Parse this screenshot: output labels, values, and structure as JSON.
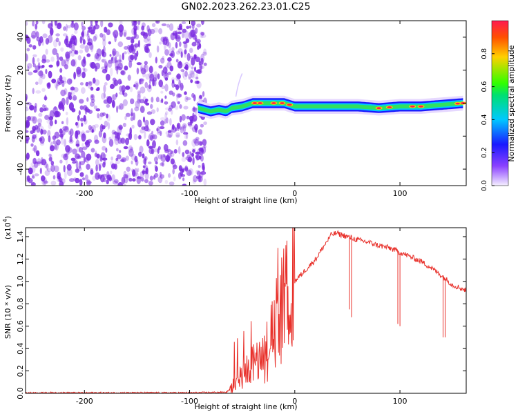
{
  "title": "GN02.2023.262.23.01.C25",
  "colors": {
    "snr_line": "#e8302a",
    "scatter": "#7a2ae0",
    "colorbar_stops": [
      "#f5f0ff",
      "#8a40ff",
      "#1a1aff",
      "#00c8ff",
      "#00e070",
      "#30ff00",
      "#ffd000",
      "#ff5000",
      "#ff1a50"
    ]
  },
  "spectrogram": {
    "xlabel": "Height of straight line (km)",
    "ylabel": "Frequency (Hz)",
    "xlim": [
      -256,
      163
    ],
    "ylim": [
      -50,
      50
    ],
    "x_ticks": [
      "-200",
      "-100",
      "0",
      "100"
    ],
    "y_ticks": [
      "-40",
      "-20",
      "0",
      "20",
      "40"
    ]
  },
  "colorbar": {
    "label": "Normalized spectral amplitude",
    "ticks": [
      "0.0",
      "0.2",
      "0.4",
      "0.6",
      "0.8"
    ],
    "range": [
      0,
      1
    ]
  },
  "snr": {
    "xlabel": "Height of straight line (km)",
    "ylabel": "SNR (10 * v/v)",
    "multiplier": "(x10",
    "multiplier_exp": "4",
    "multiplier_close": ")",
    "xlim": [
      -256,
      163
    ],
    "ylim": [
      0,
      1.48
    ],
    "x_ticks": [
      "-200",
      "-100",
      "0",
      "100"
    ],
    "y_ticks": [
      "0.0",
      "0.2",
      "0.4",
      "0.6",
      "0.8",
      "1.0",
      "1.2",
      "1.4"
    ]
  },
  "chart_data": [
    {
      "type": "heatmap",
      "title": "GN02.2023.262.23.01.C25",
      "xlabel": "Height of straight line (km)",
      "ylabel": "Frequency (Hz)",
      "xlim": [
        -256,
        163
      ],
      "ylim": [
        -50,
        50
      ],
      "noise_region_x": [
        -256,
        -85
      ],
      "ridge": {
        "x": [
          -92,
          -80,
          -72,
          -65,
          -60,
          -50,
          -40,
          -30,
          -20,
          -10,
          0,
          20,
          40,
          60,
          80,
          100,
          120,
          140,
          160
        ],
        "freq": [
          -3,
          -5,
          -4,
          -5,
          -3,
          -2,
          0,
          0,
          0,
          0,
          -2,
          -2,
          -2,
          -2,
          -3,
          -2,
          -2,
          -1,
          0
        ],
        "amplitude": [
          0.3,
          0.35,
          0.4,
          0.45,
          0.5,
          0.6,
          0.9,
          0.95,
          0.9,
          0.9,
          0.5,
          0.55,
          0.6,
          0.7,
          0.9,
          0.7,
          0.85,
          0.7,
          0.85
        ]
      }
    },
    {
      "type": "line",
      "xlabel": "Height of straight line (km)",
      "ylabel": "SNR (10 * v/v)",
      "xlim": [
        -256,
        163
      ],
      "ylim": [
        0,
        1.48
      ],
      "units_multiplier": 10000,
      "x": [
        -256,
        -200,
        -100,
        -65,
        -60,
        -50,
        -40,
        -30,
        -25,
        -20,
        -15,
        -10,
        0,
        10,
        20,
        30,
        35,
        40,
        50,
        60,
        70,
        80,
        90,
        100,
        110,
        120,
        130,
        140,
        150,
        163
      ],
      "y": [
        0.005,
        0.005,
        0.005,
        0.01,
        0.05,
        0.2,
        0.3,
        0.4,
        0.5,
        0.6,
        0.75,
        0.85,
        1.0,
        1.1,
        1.2,
        1.35,
        1.42,
        1.43,
        1.4,
        1.37,
        1.35,
        1.32,
        1.3,
        1.26,
        1.22,
        1.18,
        1.12,
        1.05,
        0.97,
        0.92
      ],
      "dips": [
        {
          "x": 52,
          "y": 0.75
        },
        {
          "x": 54,
          "y": 0.68
        },
        {
          "x": 98,
          "y": 0.62
        },
        {
          "x": 100,
          "y": 0.6
        },
        {
          "x": 141,
          "y": 0.5
        },
        {
          "x": 143,
          "y": 0.5
        }
      ]
    }
  ]
}
